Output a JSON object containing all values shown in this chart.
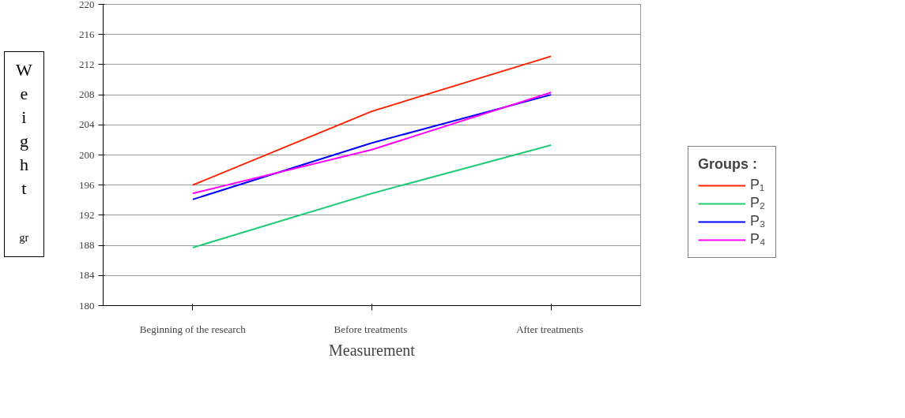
{
  "chart_data": {
    "type": "line",
    "xlabel": "Measurement",
    "ylabel": "Weight gr",
    "legend_title": "Groups :",
    "categories": [
      "Beginning of the research",
      "Before  treatments",
      "After  treatments"
    ],
    "series": [
      {
        "name": "P₁",
        "color": "#ff2200",
        "values": [
          196.0,
          205.8,
          213.1
        ]
      },
      {
        "name": "P₂",
        "color": "#22cc77",
        "values": [
          187.7,
          194.9,
          201.3
        ]
      },
      {
        "name": "P₃",
        "color": "#0000ff",
        "values": [
          194.1,
          201.6,
          208.0
        ]
      },
      {
        "name": "P₄",
        "color": "#ff00ff",
        "values": [
          194.9,
          200.7,
          208.3
        ]
      }
    ],
    "ylim": [
      180,
      220
    ],
    "yticks": [
      180,
      184,
      188,
      192,
      196,
      200,
      204,
      208,
      212,
      216,
      220
    ],
    "grid": "y",
    "legend": "right",
    "marker": "none",
    "line_style": "solid"
  }
}
